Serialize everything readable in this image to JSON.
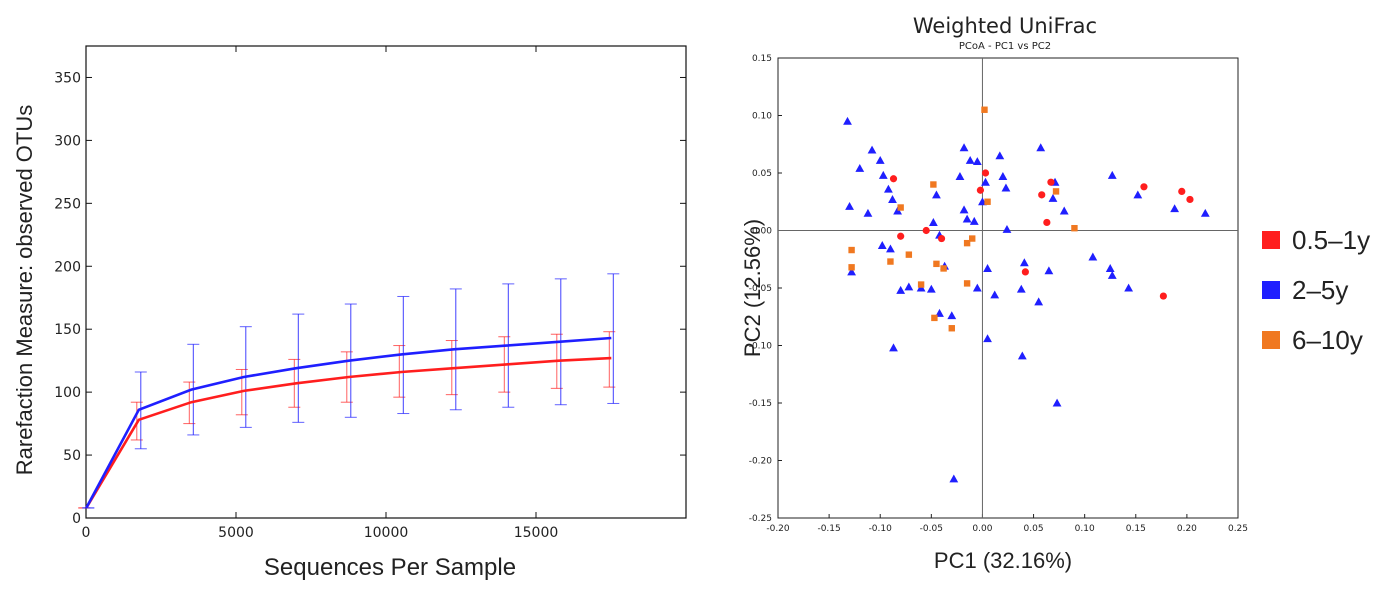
{
  "chart_data": [
    {
      "type": "line",
      "title": "",
      "xlabel": "Sequences Per Sample",
      "ylabel": "Rarefaction Measure: observed OTUs",
      "xlim": [
        0,
        20000
      ],
      "ylim": [
        0,
        375
      ],
      "x_ticks": [
        0,
        5000,
        10000,
        15000
      ],
      "y_ticks": [
        0,
        50,
        100,
        150,
        200,
        250,
        300,
        350
      ],
      "x": [
        10,
        1760,
        3510,
        5260,
        7010,
        8760,
        10510,
        12260,
        14010,
        15760,
        17510
      ],
      "series": [
        {
          "name": "red",
          "color": "#ff1e1e",
          "values": [
            8,
            78,
            92,
            101,
            107,
            112,
            116,
            119,
            122,
            125,
            127
          ],
          "err_low": [
            8,
            62,
            75,
            82,
            88,
            92,
            96,
            98,
            100,
            103,
            104
          ],
          "err_high": [
            8,
            92,
            108,
            118,
            126,
            132,
            137,
            141,
            144,
            146,
            148
          ]
        },
        {
          "name": "blue",
          "color": "#1f1fff",
          "values": [
            8,
            86,
            102,
            112,
            119,
            125,
            130,
            134,
            137,
            140,
            143
          ],
          "err_low": [
            8,
            55,
            66,
            72,
            76,
            80,
            83,
            86,
            88,
            90,
            91
          ],
          "err_high": [
            8,
            116,
            138,
            152,
            162,
            170,
            176,
            182,
            186,
            190,
            194
          ]
        }
      ]
    },
    {
      "type": "scatter",
      "title": "Weighted UniFrac",
      "subtitle": "PCoA - PC1 vs PC2",
      "xlabel": "PC1 (32.16%)",
      "ylabel": "PC2 (12.56%)",
      "xlim": [
        -0.2,
        0.25
      ],
      "ylim": [
        -0.25,
        0.15
      ],
      "x_ticks": [
        "-0.20",
        "-0.15",
        "-0.10",
        "-0.05",
        "0.00",
        "0.05",
        "0.10",
        "0.15",
        "0.20",
        "0.25"
      ],
      "y_ticks": [
        "0.15",
        "0.10",
        "0.05",
        "0.00",
        "-0.05",
        "-0.10",
        "-0.15",
        "-0.20",
        "-0.25"
      ],
      "legend": [
        "0.5–1y",
        "2–5y",
        "6–10y"
      ],
      "series": [
        {
          "name": "0.5–1y",
          "color": "#ff1e1e",
          "marker": "circle",
          "points": [
            [
              -0.087,
              0.045
            ],
            [
              -0.08,
              -0.005
            ],
            [
              -0.055,
              0.0
            ],
            [
              -0.04,
              -0.007
            ],
            [
              -0.002,
              0.035
            ],
            [
              0.003,
              0.05
            ],
            [
              0.042,
              -0.036
            ],
            [
              0.058,
              0.031
            ],
            [
              0.063,
              0.007
            ],
            [
              0.067,
              0.042
            ],
            [
              0.158,
              0.038
            ],
            [
              0.195,
              0.034
            ],
            [
              0.203,
              0.027
            ],
            [
              0.177,
              -0.057
            ]
          ]
        },
        {
          "name": "2–5y",
          "color": "#1f1fff",
          "marker": "triangle",
          "points": [
            [
              -0.132,
              0.095
            ],
            [
              -0.13,
              0.021
            ],
            [
              -0.128,
              -0.036
            ],
            [
              -0.12,
              0.054
            ],
            [
              -0.112,
              0.015
            ],
            [
              -0.108,
              0.07
            ],
            [
              -0.1,
              0.061
            ],
            [
              -0.097,
              0.048
            ],
            [
              -0.092,
              0.036
            ],
            [
              -0.088,
              0.027
            ],
            [
              -0.083,
              0.017
            ],
            [
              -0.098,
              -0.013
            ],
            [
              -0.09,
              -0.016
            ],
            [
              -0.08,
              -0.052
            ],
            [
              -0.072,
              -0.049
            ],
            [
              -0.087,
              -0.102
            ],
            [
              -0.045,
              0.031
            ],
            [
              -0.05,
              -0.051
            ],
            [
              -0.048,
              0.007
            ],
            [
              -0.042,
              -0.004
            ],
            [
              -0.042,
              -0.072
            ],
            [
              -0.037,
              -0.031
            ],
            [
              -0.03,
              -0.074
            ],
            [
              -0.018,
              0.072
            ],
            [
              -0.022,
              0.047
            ],
            [
              -0.018,
              0.018
            ],
            [
              -0.012,
              0.061
            ],
            [
              -0.008,
              0.008
            ],
            [
              -0.005,
              0.06
            ],
            [
              0.0,
              0.025
            ],
            [
              0.003,
              0.042
            ],
            [
              0.005,
              -0.033
            ],
            [
              0.012,
              -0.056
            ],
            [
              0.017,
              0.065
            ],
            [
              0.02,
              0.047
            ],
            [
              0.023,
              0.037
            ],
            [
              0.024,
              0.001
            ],
            [
              0.038,
              -0.051
            ],
            [
              0.039,
              -0.109
            ],
            [
              0.041,
              -0.028
            ],
            [
              0.055,
              -0.062
            ],
            [
              0.057,
              0.072
            ],
            [
              0.065,
              -0.035
            ],
            [
              0.069,
              0.028
            ],
            [
              0.071,
              0.042
            ],
            [
              0.073,
              -0.15
            ],
            [
              0.08,
              0.017
            ],
            [
              0.108,
              -0.023
            ],
            [
              0.125,
              -0.033
            ],
            [
              0.127,
              -0.039
            ],
            [
              0.127,
              0.048
            ],
            [
              0.143,
              -0.05
            ],
            [
              0.152,
              0.031
            ],
            [
              0.188,
              0.019
            ],
            [
              0.218,
              0.015
            ],
            [
              -0.028,
              -0.216
            ],
            [
              -0.015,
              0.01
            ],
            [
              -0.005,
              -0.05
            ],
            [
              0.005,
              -0.094
            ],
            [
              -0.06,
              -0.05
            ]
          ]
        },
        {
          "name": "6–10y",
          "color": "#f07820",
          "marker": "square",
          "points": [
            [
              -0.128,
              -0.017
            ],
            [
              -0.128,
              -0.032
            ],
            [
              -0.09,
              -0.027
            ],
            [
              -0.08,
              0.02
            ],
            [
              -0.072,
              -0.021
            ],
            [
              -0.06,
              -0.047
            ],
            [
              -0.048,
              0.04
            ],
            [
              -0.047,
              -0.076
            ],
            [
              -0.045,
              -0.029
            ],
            [
              -0.038,
              -0.033
            ],
            [
              -0.03,
              -0.085
            ],
            [
              -0.015,
              -0.046
            ],
            [
              -0.015,
              -0.011
            ],
            [
              -0.01,
              -0.007
            ],
            [
              0.002,
              0.105
            ],
            [
              0.005,
              0.025
            ],
            [
              0.072,
              0.034
            ],
            [
              0.09,
              0.002
            ]
          ]
        }
      ]
    }
  ]
}
